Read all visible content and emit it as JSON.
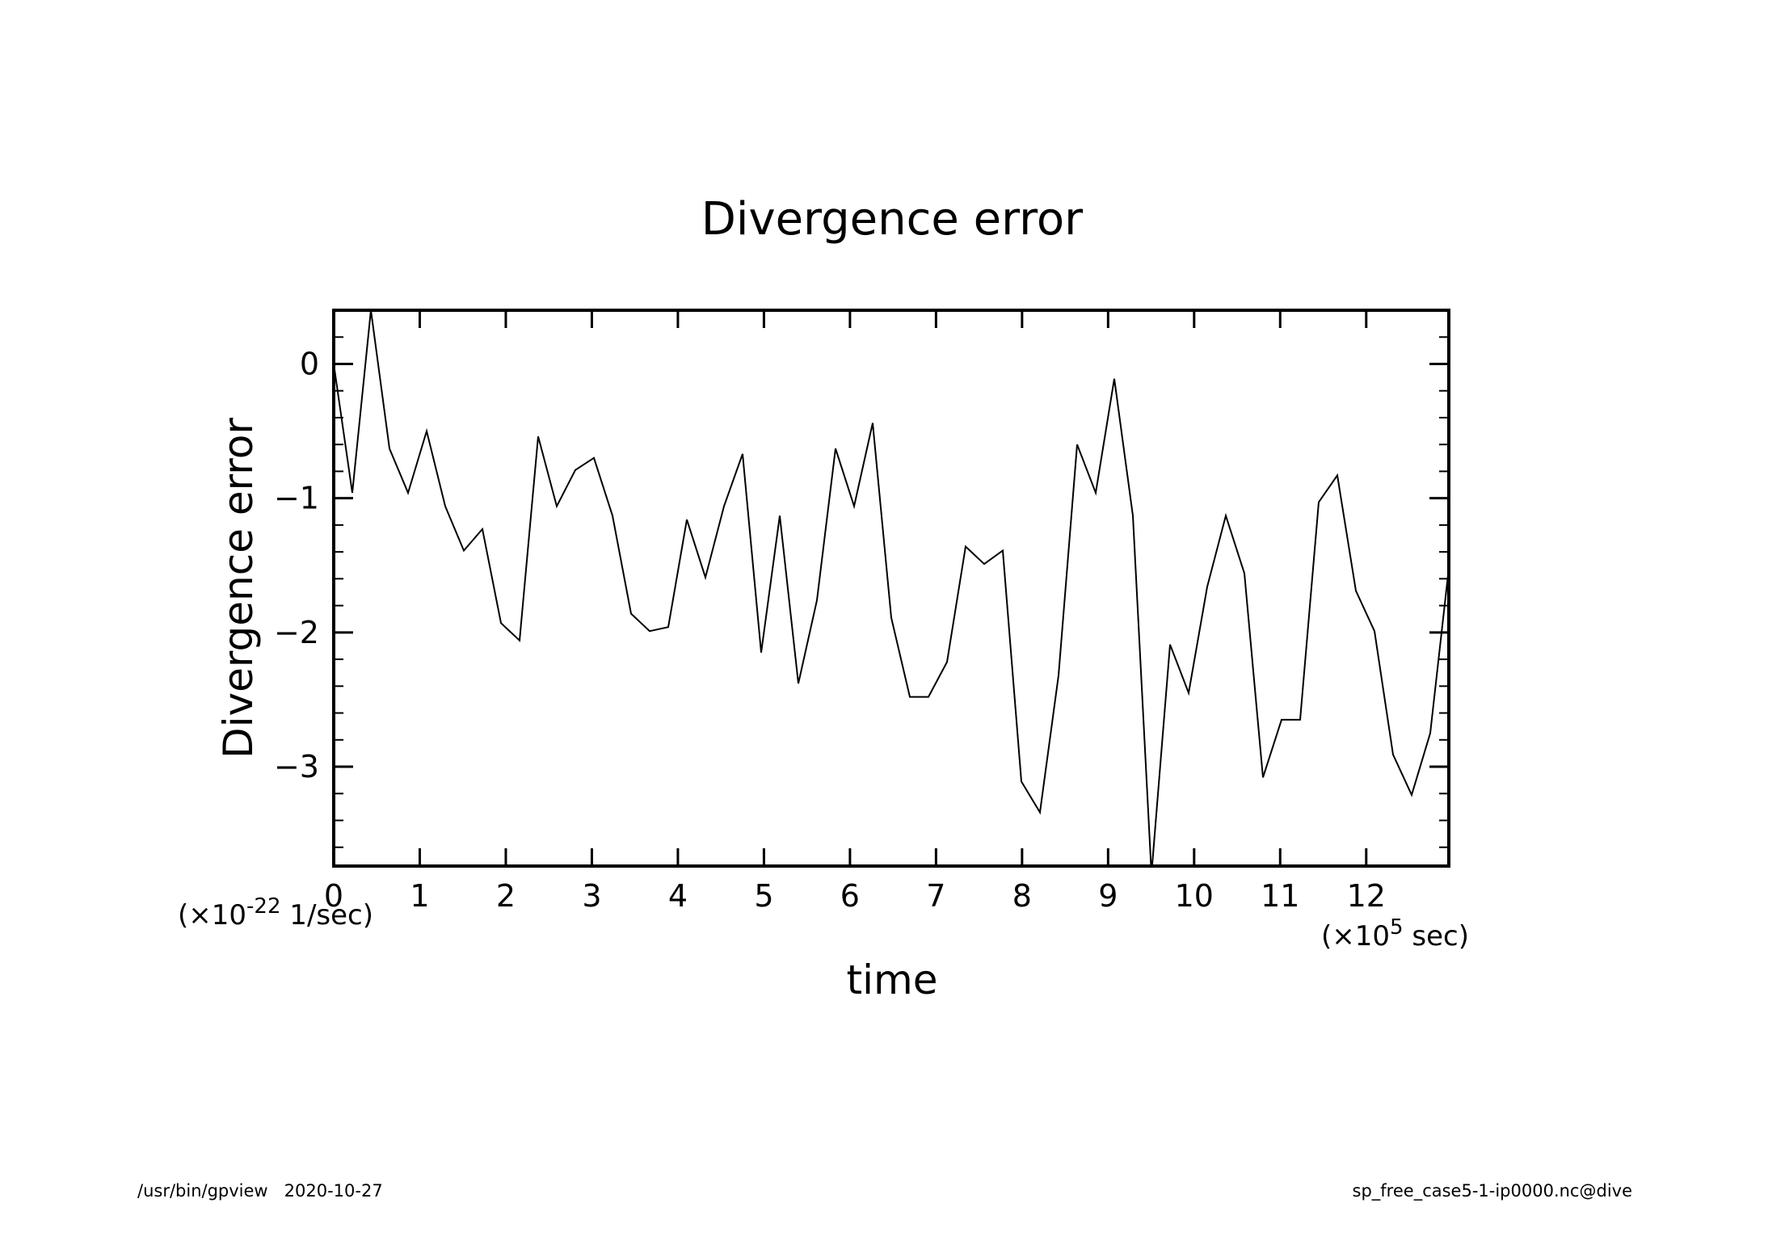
{
  "footer": {
    "program": "/usr/bin/gpview",
    "date": "2020-10-27",
    "source": "sp_free_case5-1-ip0000.nc@dive"
  },
  "chart_data": {
    "type": "line",
    "title": "Divergence error",
    "xlabel": "time",
    "ylabel": "Divergence error",
    "x_unit": {
      "prefix": "(×10",
      "exp": "5",
      "suffix": " sec)"
    },
    "y_unit": {
      "prefix": "(×10",
      "exp": "-22",
      "suffix": " 1/sec)"
    },
    "xlim": [
      0,
      12.96
    ],
    "ylim": [
      -3.74,
      0.4
    ],
    "x_ticks": [
      0,
      1,
      2,
      3,
      4,
      5,
      6,
      7,
      8,
      9,
      10,
      11,
      12
    ],
    "x_tick_labels": [
      "0",
      "1",
      "2",
      "3",
      "4",
      "5",
      "6",
      "7",
      "8",
      "9",
      "10",
      "11",
      "12"
    ],
    "y_ticks": [
      -3,
      -2,
      -1,
      0
    ],
    "y_tick_labels": [
      "−3",
      "−2",
      "−1",
      "0"
    ],
    "grid": false,
    "line_color": "#000000",
    "series": [
      {
        "x": [
          0,
          0.216,
          0.432,
          0.648,
          0.864,
          1.08,
          1.296,
          1.512,
          1.728,
          1.944,
          2.16,
          2.376,
          2.592,
          2.808,
          3.024,
          3.24,
          3.456,
          3.672,
          3.888,
          4.104,
          4.32,
          4.536,
          4.752,
          4.968,
          5.184,
          5.4,
          5.616,
          5.832,
          6.048,
          6.264,
          6.48,
          6.696,
          6.912,
          7.128,
          7.344,
          7.56,
          7.776,
          7.992,
          8.208,
          8.424,
          8.64,
          8.856,
          9.072,
          9.288,
          9.504,
          9.72,
          9.936,
          10.152,
          10.368,
          10.584,
          10.8,
          11.016,
          11.232,
          11.448,
          11.664,
          11.88,
          12.096,
          12.312,
          12.528,
          12.744,
          12.96
        ],
        "values": [
          0.0,
          -0.96,
          0.4,
          -0.63,
          -0.96,
          -0.5,
          -1.06,
          -1.39,
          -1.23,
          -1.93,
          -2.06,
          -0.54,
          -1.06,
          -0.79,
          -0.7,
          -1.13,
          -1.86,
          -1.99,
          -1.96,
          -1.16,
          -1.59,
          -1.06,
          -0.67,
          -2.15,
          -1.13,
          -2.38,
          -1.76,
          -0.63,
          -1.06,
          -0.44,
          -1.89,
          -2.48,
          -2.48,
          -2.22,
          -1.36,
          -1.49,
          -1.39,
          -3.11,
          -3.34,
          -2.32,
          -0.6,
          -0.96,
          -0.11,
          -1.13,
          -3.8,
          -2.09,
          -2.45,
          -1.66,
          -1.13,
          -1.56,
          -3.08,
          -2.65,
          -2.65,
          -1.03,
          -0.83,
          -1.69,
          -1.99,
          -2.91,
          -3.21,
          -2.75,
          -1.52
        ]
      }
    ]
  }
}
